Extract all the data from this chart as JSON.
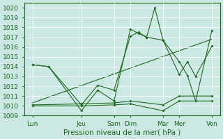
{
  "xlabel": "Pression niveau de la mer( hPa )",
  "bg_color": "#cce8e4",
  "line_color": "#1a6b1a",
  "grid_color": "#b0d8d0",
  "ylim": [
    1009,
    1020.5
  ],
  "yticks": [
    1009,
    1010,
    1011,
    1012,
    1013,
    1014,
    1015,
    1016,
    1017,
    1018,
    1019,
    1020
  ],
  "xtick_labels": [
    "Lun",
    "Jeu",
    "Sam",
    "Dim",
    "Mar",
    "Mer",
    "Ven"
  ],
  "xtick_positions": [
    0,
    3,
    5,
    6,
    8,
    9,
    11
  ],
  "xlim": [
    -0.5,
    11.5
  ],
  "series": [
    {
      "x": [
        0,
        1,
        3,
        4,
        5,
        6,
        6.5,
        7,
        7.5,
        8,
        9,
        9.5,
        10,
        11
      ],
      "y": [
        1014.2,
        1014.0,
        1010.1,
        1012.1,
        1011.6,
        1017.1,
        1017.5,
        1017.0,
        1020.0,
        1016.7,
        1014.5,
        1013.1,
        1010.5,
        1017.7
      ],
      "marker": true
    },
    {
      "x": [
        0,
        1,
        3,
        4,
        5,
        6,
        6.5,
        7,
        8,
        9,
        9.5,
        10,
        11
      ],
      "y": [
        1014.2,
        1014.0,
        1009.5,
        1011.6,
        1010.5,
        1017.8,
        1017.4,
        1017.0,
        1016.7,
        1013.2,
        1014.5,
        1013.0,
        1016.1
      ],
      "marker": true
    },
    {
      "x": [
        0,
        3,
        5,
        6,
        8,
        9,
        11
      ],
      "y": [
        1010.0,
        1010.0,
        1010.1,
        1010.2,
        1009.5,
        1010.5,
        1010.5
      ],
      "marker": true
    },
    {
      "x": [
        0,
        3,
        5,
        6,
        8,
        9,
        11
      ],
      "y": [
        1010.1,
        1010.2,
        1010.3,
        1010.5,
        1010.1,
        1011.0,
        1011.0
      ],
      "marker": true
    },
    {
      "x": [
        0,
        11
      ],
      "y": [
        1010.3,
        1016.8
      ],
      "marker": false
    }
  ],
  "figsize": [
    3.2,
    2.0
  ],
  "dpi": 100,
  "font_size": 6.5,
  "xlabel_fontsize": 7.5
}
